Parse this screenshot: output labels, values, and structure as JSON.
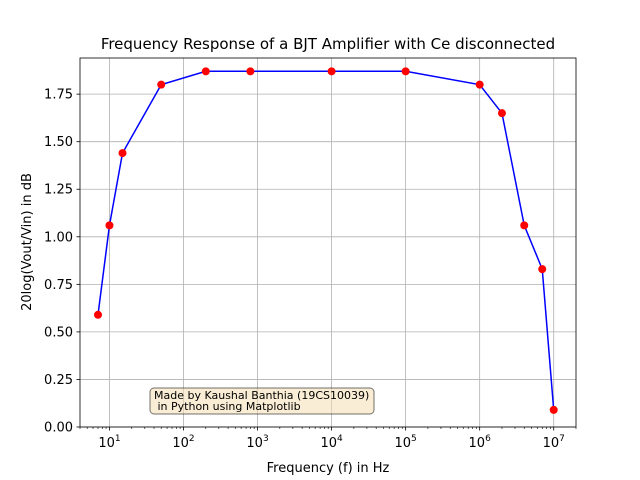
{
  "chart_data": {
    "type": "line",
    "title": "Frequency Response of a BJT Amplifier with Ce disconnected",
    "xlabel": "Frequency (f) in Hz",
    "ylabel": "20log(Vout/Vin) in dB",
    "x_scale": "log",
    "xlim": [
      4,
      20000000
    ],
    "ylim": [
      0,
      1.94
    ],
    "x_ticks": [
      10,
      100,
      1000,
      10000,
      100000,
      1000000,
      10000000
    ],
    "x_tick_labels": [
      {
        "base": "10",
        "exp": "1"
      },
      {
        "base": "10",
        "exp": "2"
      },
      {
        "base": "10",
        "exp": "3"
      },
      {
        "base": "10",
        "exp": "4"
      },
      {
        "base": "10",
        "exp": "5"
      },
      {
        "base": "10",
        "exp": "6"
      },
      {
        "base": "10",
        "exp": "7"
      }
    ],
    "y_ticks": [
      0,
      0.25,
      0.5,
      0.75,
      1.0,
      1.25,
      1.5,
      1.75
    ],
    "y_tick_labels": [
      "0.00",
      "0.25",
      "0.50",
      "0.75",
      "1.00",
      "1.25",
      "1.50",
      "1.75"
    ],
    "grid": true,
    "series": [
      {
        "line_color": "#0000ff",
        "marker_color": "#ff0000",
        "x": [
          7,
          10,
          15,
          50,
          200,
          800,
          10000,
          100000,
          1000000,
          2000000,
          4000000,
          7000000,
          10000000
        ],
        "y": [
          0.59,
          1.06,
          1.44,
          1.8,
          1.87,
          1.87,
          1.87,
          1.87,
          1.8,
          1.65,
          1.06,
          0.83,
          0.09
        ]
      }
    ],
    "annotation": {
      "lines": [
        "Made by Kaushal Banthia (19CS10039)",
        " in Python using Matplotlib"
      ],
      "background": "#f5deb3"
    }
  }
}
